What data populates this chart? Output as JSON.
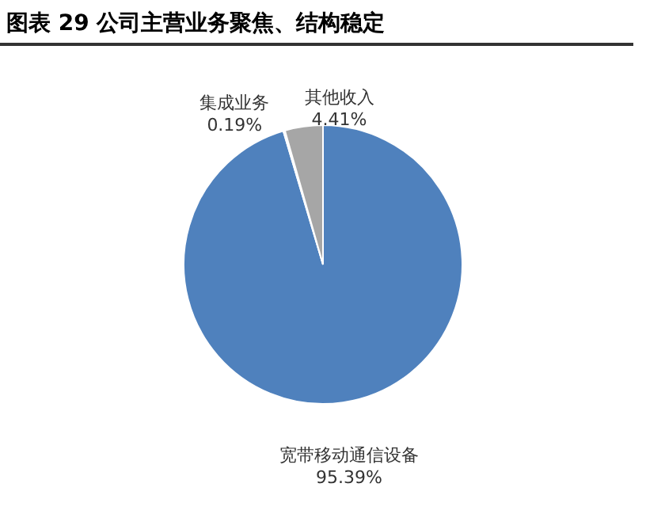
{
  "chart_data": {
    "type": "pie",
    "title": "图表 29 公司主营业务聚焦、结构稳定",
    "categories": [
      "宽带移动通信设备",
      "集成业务",
      "其他收入"
    ],
    "values": [
      95.39,
      0.19,
      4.41
    ],
    "colors": [
      "#4f81bd",
      "#ffffff",
      "#a6a6a6"
    ],
    "value_labels": [
      "95.39%",
      "0.19%",
      "4.41%"
    ],
    "legend": false
  }
}
